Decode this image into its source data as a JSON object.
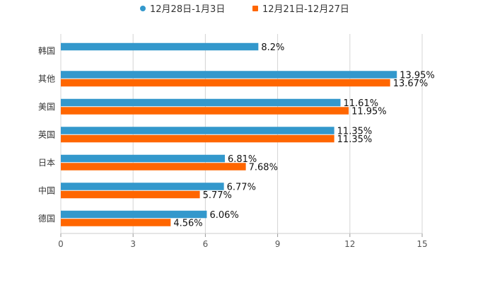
{
  "chart_data": {
    "type": "bar",
    "orientation": "horizontal",
    "categories": [
      "韩国",
      "其他",
      "美国",
      "英国",
      "日本",
      "中国",
      "德国"
    ],
    "series": [
      {
        "name": "12月28日-1月3日",
        "color": "#3398CC",
        "values": [
          8.2,
          13.95,
          11.61,
          11.35,
          6.81,
          6.77,
          6.06
        ],
        "labels": [
          "8.2%",
          "13.95%",
          "11.61%",
          "11.35%",
          "6.81%",
          "6.77%",
          "6.06%"
        ]
      },
      {
        "name": "12月21日-12月27日",
        "color": "#FF6600",
        "values": [
          null,
          13.67,
          11.95,
          11.35,
          7.68,
          5.77,
          4.56
        ],
        "labels": [
          "",
          "13.67%",
          "11.95%",
          "11.35%",
          "7.68%",
          "5.77%",
          "4.56%"
        ]
      }
    ],
    "xlim": [
      0,
      15
    ],
    "xticks": [
      0,
      3,
      6,
      9,
      12,
      15
    ],
    "xtick_labels": [
      "0",
      "3",
      "6",
      "9",
      "12",
      "15"
    ],
    "grid": true,
    "legend_position": "top-center",
    "title": "",
    "xlabel": "",
    "ylabel": ""
  }
}
